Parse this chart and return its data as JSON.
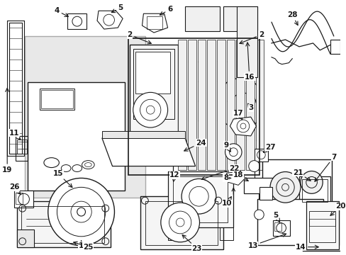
{
  "bg_color": "#ffffff",
  "line_color": "#1a1a1a",
  "fig_width": 4.89,
  "fig_height": 3.6,
  "dpi": 100,
  "gray_fill": "#e8e8e8",
  "light_gray": "#d4d4d4"
}
